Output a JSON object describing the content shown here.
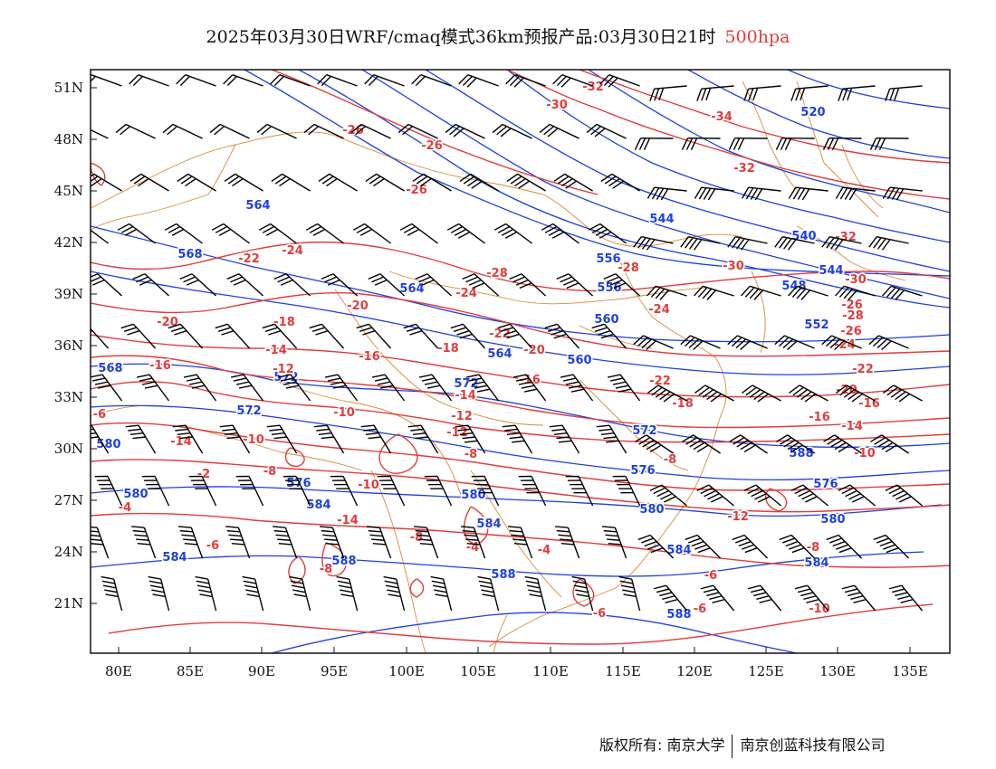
{
  "title": {
    "main": "2025年03月30日WRF/cmaq模式36km预报产品:03月30日21时",
    "level": "500hpa"
  },
  "colors": {
    "height_contour": "#1f3fe0",
    "temperature_contour": "#e03c3c",
    "boundary": "#d98a3a",
    "wind_barb": "#000000"
  },
  "axes": {
    "x_ticks": [
      "80E",
      "85E",
      "90E",
      "95E",
      "100E",
      "105E",
      "110E",
      "115E",
      "120E",
      "125E",
      "130E",
      "135E"
    ],
    "y_ticks": [
      "51N",
      "48N",
      "45N",
      "42N",
      "39N",
      "36N",
      "33N",
      "30N",
      "27N",
      "24N",
      "21N"
    ]
  },
  "height_labels": [
    "520",
    "544",
    "540",
    "544",
    "548",
    "552",
    "560",
    "556",
    "556",
    "564",
    "564",
    "568",
    "568",
    "572",
    "572",
    "572",
    "576",
    "576",
    "576",
    "580",
    "580",
    "580",
    "580",
    "580",
    "584",
    "584",
    "584",
    "584",
    "584",
    "588",
    "588",
    "588",
    "572",
    "564",
    "560",
    "588"
  ],
  "temperature_labels": [
    "-32",
    "-30",
    "-34",
    "-26",
    "-26",
    "-26",
    "-32",
    "-24",
    "-22",
    "-32",
    "-28",
    "-30",
    "-30",
    "-28",
    "-26",
    "-24",
    "-20",
    "-20",
    "-18",
    "-24",
    "-28",
    "-26",
    "-24",
    "-14",
    "-12",
    "-16",
    "-16",
    "-18",
    "-20",
    "-22",
    "-22",
    "-20",
    "-22",
    "-16",
    "-14",
    "-12",
    "-16",
    "-18",
    "-16",
    "-14",
    "-12",
    "-10",
    "-14",
    "-8",
    "-10",
    "-8",
    "-2",
    "-10",
    "-8",
    "-10",
    "-12",
    "-14",
    "-6",
    "-8",
    "-4",
    "-4",
    "-6",
    "-8",
    "-6",
    "-6",
    "-4",
    "-8",
    "-10",
    "-6",
    "-10",
    "-8",
    "-4",
    "-6",
    "-8",
    "-12"
  ],
  "footer": {
    "left": "版权所有: 南京大学",
    "right": "南京创蓝科技有限公司"
  }
}
